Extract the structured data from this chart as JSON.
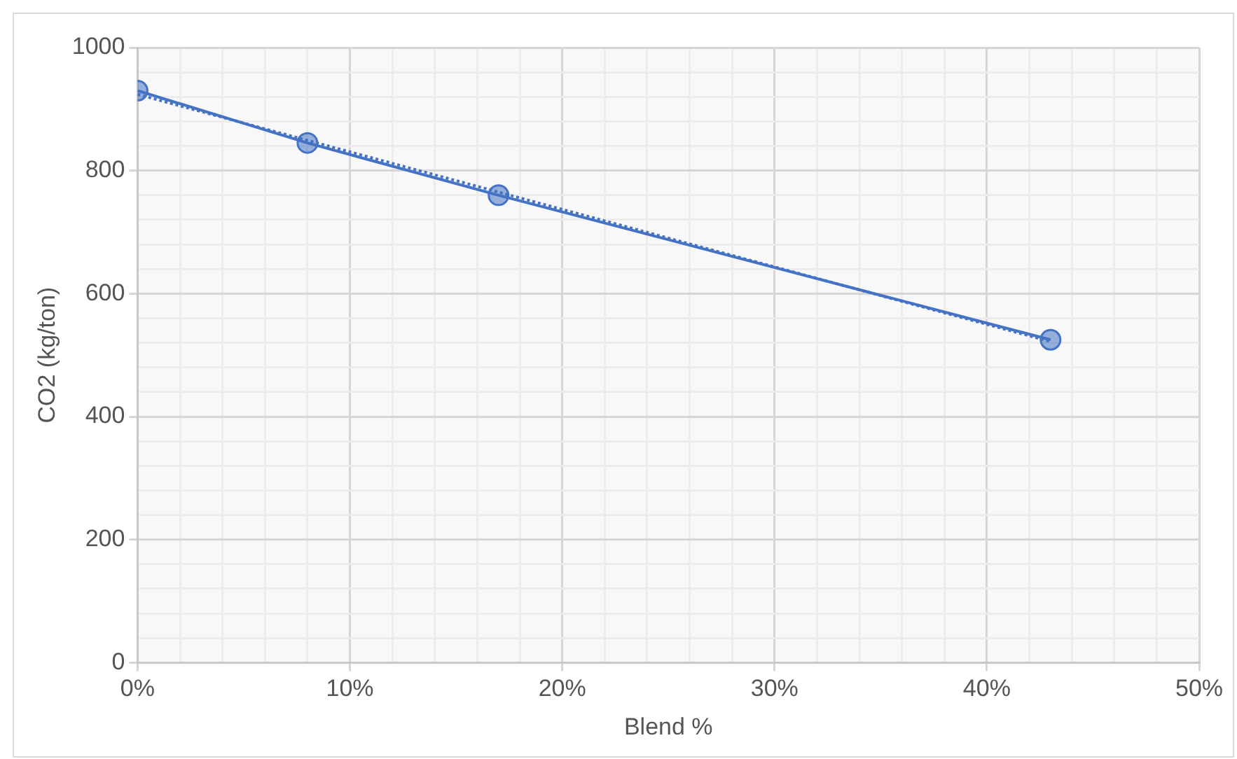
{
  "chart_data": {
    "type": "line",
    "xlabel": "Blend %",
    "ylabel": "CO2 (kg/ton)",
    "xlim": [
      0,
      50
    ],
    "ylim": [
      0,
      1000
    ],
    "xticks": [
      {
        "value": 0,
        "label": "0%"
      },
      {
        "value": 2,
        "label": null
      },
      {
        "value": 4,
        "label": null
      },
      {
        "value": 6,
        "label": null
      },
      {
        "value": 8,
        "label": null
      },
      {
        "value": 10,
        "label": "10%"
      },
      {
        "value": 12,
        "label": null
      },
      {
        "value": 14,
        "label": null
      },
      {
        "value": 16,
        "label": null
      },
      {
        "value": 18,
        "label": null
      },
      {
        "value": 20,
        "label": "20%"
      },
      {
        "value": 22,
        "label": null
      },
      {
        "value": 24,
        "label": null
      },
      {
        "value": 26,
        "label": null
      },
      {
        "value": 28,
        "label": null
      },
      {
        "value": 30,
        "label": "30%"
      },
      {
        "value": 32,
        "label": null
      },
      {
        "value": 34,
        "label": null
      },
      {
        "value": 36,
        "label": null
      },
      {
        "value": 38,
        "label": null
      },
      {
        "value": 40,
        "label": "40%"
      },
      {
        "value": 42,
        "label": null
      },
      {
        "value": 44,
        "label": null
      },
      {
        "value": 46,
        "label": null
      },
      {
        "value": 48,
        "label": null
      },
      {
        "value": 50,
        "label": "50%"
      }
    ],
    "yticks": [
      0,
      {
        "value": 40,
        "label": null
      },
      {
        "value": 80,
        "label": null
      },
      {
        "value": 120,
        "label": null
      },
      {
        "value": 160,
        "label": null
      },
      200,
      {
        "value": 240,
        "label": null
      },
      {
        "value": 280,
        "label": null
      },
      {
        "value": 320,
        "label": null
      },
      {
        "value": 360,
        "label": null
      },
      400,
      {
        "value": 440,
        "label": null
      },
      {
        "value": 480,
        "label": null
      },
      {
        "value": 520,
        "label": null
      },
      {
        "value": 560,
        "label": null
      },
      600,
      {
        "value": 640,
        "label": null
      },
      {
        "value": 680,
        "label": null
      },
      {
        "value": 720,
        "label": null
      },
      {
        "value": 760,
        "label": null
      },
      800,
      {
        "value": 840,
        "label": null
      },
      {
        "value": 880,
        "label": null
      },
      {
        "value": 920,
        "label": null
      },
      {
        "value": 960,
        "label": null
      },
      1000
    ],
    "grid": true,
    "legend": false,
    "marker": "circle",
    "series": [
      {
        "color": "#4472c4",
        "x": [
          0,
          8,
          17,
          43
        ],
        "values": [
          930,
          845,
          760,
          525
        ],
        "line_style": "solid"
      },
      {
        "color": "#4472c4",
        "x": [
          0,
          43
        ],
        "values": [
          924,
          522
        ],
        "marker": "none",
        "line_style": "dotted"
      }
    ]
  }
}
